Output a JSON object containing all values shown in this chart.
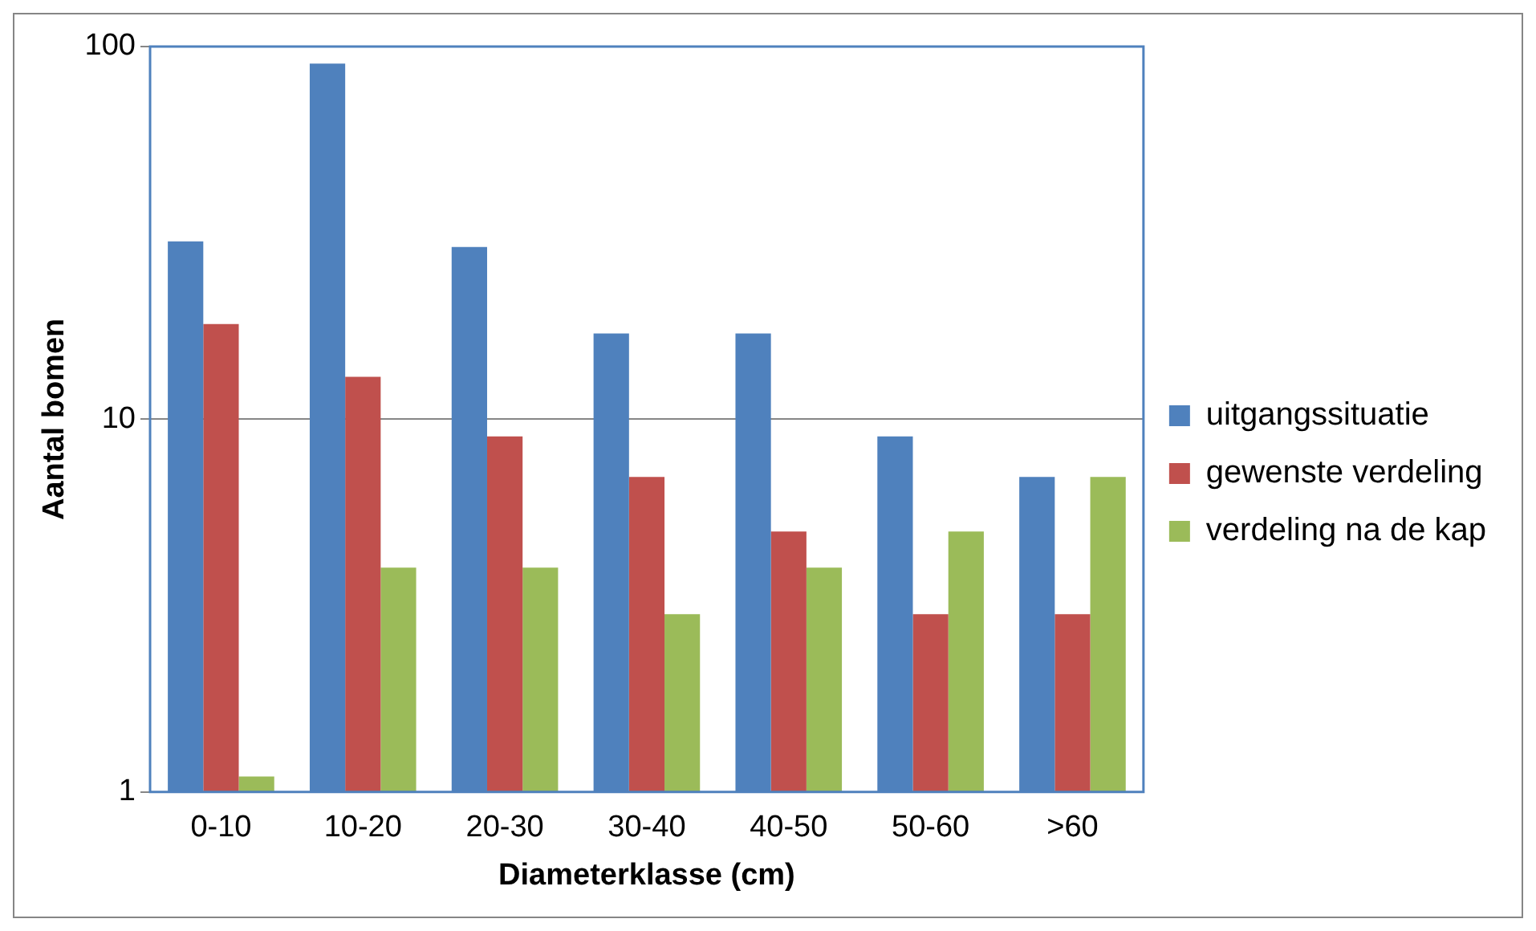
{
  "chart_data": {
    "type": "bar",
    "xlabel": "Diameterklasse (cm)",
    "ylabel": "Aantal bomen",
    "categories": [
      "0-10",
      "10-20",
      "20-30",
      "30-40",
      "40-50",
      "50-60",
      ">60"
    ],
    "series": [
      {
        "name": "uitgangssituatie",
        "color": "#4f81bd",
        "values": [
          30,
          90,
          29,
          17,
          17,
          9,
          7
        ]
      },
      {
        "name": "gewenste verdeling",
        "color": "#c0504d",
        "values": [
          18,
          13,
          9,
          7,
          5,
          3,
          3
        ]
      },
      {
        "name": "verdeling na de kap",
        "color": "#9bbb59",
        "values": [
          1.1,
          4,
          4,
          3,
          4,
          5,
          7
        ]
      }
    ],
    "log": "y",
    "ylim": [
      1,
      100
    ],
    "yticks": [
      1,
      10,
      100
    ],
    "grid": "y",
    "legend": "right"
  }
}
